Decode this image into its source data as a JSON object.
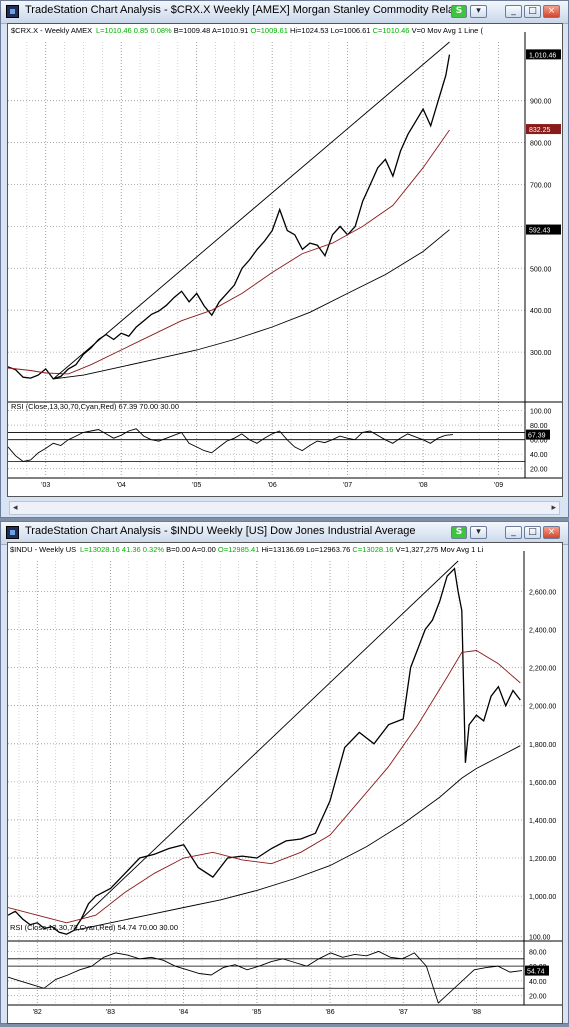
{
  "window1": {
    "title": "TradeStation Chart Analysis - $CRX.X  Weekly  [AMEX] Morgan Stanley Commodity Relat",
    "link_label": "S",
    "header_symbol": "$CRX.X - Weekly  AMEX",
    "quote_parts": [
      {
        "text": "L=1010.46",
        "color": "#00b000"
      },
      {
        "text": "0.85",
        "color": "#00b000"
      },
      {
        "text": "0.08%",
        "color": "#00b000"
      },
      {
        "text": "B=1009.48",
        "color": "#000000"
      },
      {
        "text": "A=1010.91",
        "color": "#000000"
      },
      {
        "text": "O=1009.61",
        "color": "#00b000"
      },
      {
        "text": "Hi=1024.53",
        "color": "#000000"
      },
      {
        "text": "Lo=1006.61",
        "color": "#000000"
      },
      {
        "text": "C=1010.46",
        "color": "#00b000"
      },
      {
        "text": "V=0",
        "color": "#000000"
      },
      {
        "text": "Mov Avg 1 Line (",
        "color": "#000000"
      }
    ],
    "rsi_label": "RSI (Close,13,30,70,Cyan,Red)    67.39   70.00   30.00",
    "price_markers": [
      {
        "label": "1,010.46",
        "bg": "#000000",
        "fg": "#ffffff"
      },
      {
        "label": "832.25",
        "bg": "#8b1a1a",
        "fg": "#ffffff"
      },
      {
        "label": "592.43",
        "bg": "#000000",
        "fg": "#ffffff"
      }
    ],
    "rsi_marker": "67.39",
    "scroll_left": "◂",
    "scroll_right": "▸"
  },
  "window2": {
    "title": "TradeStation Chart Analysis - $INDU  Weekly  [US] Dow Jones Industrial Average",
    "link_label": "S",
    "header_symbol": "$INDU - Weekly  US",
    "quote_parts": [
      {
        "text": "L=13028.16",
        "color": "#00b000"
      },
      {
        "text": "41.36",
        "color": "#00b000"
      },
      {
        "text": "0.32%",
        "color": "#00b000"
      },
      {
        "text": "B=0.00",
        "color": "#000000"
      },
      {
        "text": "A=0.00",
        "color": "#000000"
      },
      {
        "text": "O=12985.41",
        "color": "#00b000"
      },
      {
        "text": "Hi=13136.69",
        "color": "#000000"
      },
      {
        "text": "Lo=12963.76",
        "color": "#000000"
      },
      {
        "text": "C=13028.16",
        "color": "#00b000"
      },
      {
        "text": "V=1,327,275",
        "color": "#000000"
      },
      {
        "text": "Mov Avg 1 Li",
        "color": "#000000"
      }
    ],
    "rsi_label": "RSI (Close,13,30,70,Cyan,Red)    54.74   70.00   30.00",
    "rsi_marker": "54.74"
  },
  "chart_data": [
    {
      "type": "line",
      "x_tick_labels": [
        "'03",
        "'04",
        "'05",
        "'06",
        "'07",
        "'08",
        "'09"
      ],
      "x_start": 2002.5,
      "x_end": 2009.35,
      "y_tick_labels": [
        "300.00",
        "400.00",
        "500.00",
        "600.00",
        "700.00",
        "800.00",
        "900.00"
      ],
      "ylim": [
        200,
        1040
      ],
      "series": [
        {
          "color": "#000000",
          "x": [
            2002.5,
            2002.6,
            2002.7,
            2002.8,
            2002.9,
            2003.0,
            2003.1,
            2003.2,
            2003.3,
            2003.4,
            2003.5,
            2003.6,
            2003.7,
            2003.8,
            2003.9,
            2004.0,
            2004.1,
            2004.2,
            2004.3,
            2004.4,
            2004.5,
            2004.6,
            2004.7,
            2004.8,
            2004.9,
            2005.0,
            2005.1,
            2005.2,
            2005.3,
            2005.4,
            2005.5,
            2005.6,
            2005.7,
            2005.8,
            2005.9,
            2006.0,
            2006.1,
            2006.2,
            2006.3,
            2006.4,
            2006.5,
            2006.6,
            2006.7,
            2006.8,
            2006.9,
            2007.0,
            2007.1,
            2007.2,
            2007.3,
            2007.4,
            2007.5,
            2007.6,
            2007.7,
            2007.8,
            2007.9,
            2008.0,
            2008.1,
            2008.2,
            2008.3,
            2008.35
          ],
          "y": [
            265,
            258,
            240,
            238,
            245,
            260,
            236,
            242,
            260,
            270,
            295,
            310,
            330,
            342,
            330,
            345,
            338,
            360,
            375,
            390,
            398,
            412,
            430,
            445,
            420,
            440,
            410,
            388,
            420,
            440,
            460,
            500,
            520,
            545,
            565,
            590,
            640,
            590,
            580,
            545,
            560,
            555,
            530,
            580,
            600,
            580,
            600,
            660,
            700,
            740,
            760,
            720,
            780,
            820,
            850,
            880,
            840,
            900,
            960,
            1010
          ]
        },
        {
          "color": "#8b1a1a",
          "x": [
            2002.5,
            2002.8,
            2003.0,
            2003.3,
            2003.6,
            2004.0,
            2004.4,
            2004.8,
            2005.2,
            2005.6,
            2006.0,
            2006.4,
            2006.8,
            2007.2,
            2007.6,
            2008.0,
            2008.35
          ],
          "y": [
            262,
            256,
            250,
            248,
            270,
            305,
            340,
            375,
            400,
            440,
            490,
            535,
            560,
            600,
            650,
            740,
            830
          ]
        },
        {
          "color": "#000000",
          "x": [
            2003.1,
            2003.5,
            2004.0,
            2004.5,
            2005.0,
            2005.5,
            2006.0,
            2006.5,
            2007.0,
            2007.5,
            2008.0,
            2008.35
          ],
          "y": [
            236,
            245,
            265,
            285,
            305,
            330,
            360,
            395,
            440,
            485,
            540,
            592
          ]
        },
        {
          "color": "#000000",
          "x": [
            2003.1,
            2008.35
          ],
          "y": [
            236,
            1040
          ]
        }
      ],
      "rsi": {
        "ylim": [
          10,
          105
        ],
        "y_tick_labels": [
          "20.00",
          "40.00",
          "60.00",
          "80.00",
          "100.00"
        ],
        "levels": [
          70,
          30,
          60
        ],
        "values": [
          50,
          38,
          30,
          32,
          42,
          48,
          55,
          52,
          60,
          65,
          70,
          72,
          74,
          68,
          62,
          66,
          72,
          75,
          65,
          60,
          58,
          62,
          66,
          70,
          55,
          50,
          45,
          42,
          50,
          58,
          62,
          68,
          60,
          55,
          62,
          68,
          72,
          60,
          50,
          45,
          52,
          58,
          56,
          60,
          65,
          62,
          60,
          70,
          72,
          66,
          60,
          55,
          62,
          68,
          64,
          60,
          55,
          62,
          66,
          67
        ]
      }
    },
    {
      "type": "line",
      "x_tick_labels": [
        "'82",
        "'83",
        "'84",
        "'85",
        "'86",
        "'87",
        "'88"
      ],
      "x_start": 1981.6,
      "x_end": 1988.65,
      "y_tick_labels": [
        "1,000.00",
        "1,200.00",
        "1,400.00",
        "1,600.00",
        "1,800.00",
        "2,000.00",
        "2,200.00",
        "2,400.00",
        "2,600.00"
      ],
      "ylim": [
        780,
        2760
      ],
      "series": [
        {
          "color": "#000000",
          "x": [
            1981.6,
            1981.7,
            1981.8,
            1981.9,
            1982.0,
            1982.1,
            1982.2,
            1982.3,
            1982.4,
            1982.5,
            1982.6,
            1982.7,
            1982.8,
            1982.9,
            1983.0,
            1983.2,
            1983.4,
            1983.6,
            1983.8,
            1984.0,
            1984.2,
            1984.4,
            1984.6,
            1984.8,
            1985.0,
            1985.2,
            1985.4,
            1985.6,
            1985.8,
            1986.0,
            1986.2,
            1986.4,
            1986.6,
            1986.8,
            1987.0,
            1987.1,
            1987.2,
            1987.3,
            1987.4,
            1987.5,
            1987.6,
            1987.7,
            1987.75,
            1987.8,
            1987.85,
            1987.9,
            1988.0,
            1988.1,
            1988.2,
            1988.3,
            1988.4,
            1988.5,
            1988.6
          ],
          "y": [
            900,
            920,
            880,
            850,
            860,
            830,
            840,
            810,
            800,
            820,
            880,
            960,
            1000,
            1020,
            1040,
            1120,
            1200,
            1220,
            1250,
            1270,
            1150,
            1100,
            1200,
            1210,
            1200,
            1250,
            1290,
            1300,
            1330,
            1500,
            1780,
            1860,
            1800,
            1900,
            1930,
            2200,
            2300,
            2400,
            2450,
            2550,
            2680,
            2720,
            2600,
            2500,
            1700,
            1900,
            1950,
            1920,
            2050,
            2100,
            2000,
            2080,
            2030
          ]
        },
        {
          "color": "#8b1a1a",
          "x": [
            1981.6,
            1982.0,
            1982.4,
            1982.8,
            1983.2,
            1983.6,
            1984.0,
            1984.4,
            1984.8,
            1985.2,
            1985.6,
            1986.0,
            1986.4,
            1986.8,
            1987.2,
            1987.6,
            1987.8,
            1988.0,
            1988.3,
            1988.6
          ],
          "y": [
            940,
            900,
            860,
            900,
            1020,
            1120,
            1200,
            1230,
            1190,
            1170,
            1230,
            1320,
            1500,
            1680,
            1900,
            2150,
            2280,
            2290,
            2220,
            2120
          ]
        },
        {
          "color": "#000000",
          "x": [
            1982.5,
            1983.0,
            1983.5,
            1984.0,
            1984.5,
            1985.0,
            1985.5,
            1986.0,
            1986.5,
            1987.0,
            1987.5,
            1987.8,
            1988.0,
            1988.3,
            1988.6
          ],
          "y": [
            820,
            860,
            900,
            940,
            980,
            1030,
            1090,
            1160,
            1260,
            1380,
            1520,
            1620,
            1670,
            1730,
            1790
          ]
        },
        {
          "color": "#000000",
          "x": [
            1982.6,
            1987.75
          ],
          "y": [
            880,
            2760
          ]
        }
      ],
      "rsi": {
        "ylim": [
          10,
          105
        ],
        "y_tick_labels": [
          "20.00",
          "40.00",
          "60.00",
          "80.00",
          "100.00"
        ],
        "levels": [
          70,
          30,
          60
        ],
        "values": [
          45,
          40,
          35,
          30,
          42,
          48,
          55,
          60,
          72,
          78,
          75,
          70,
          72,
          68,
          60,
          55,
          50,
          48,
          58,
          62,
          55,
          60,
          66,
          70,
          65,
          60,
          70,
          78,
          72,
          76,
          74,
          80,
          72,
          70,
          78,
          60,
          10,
          25,
          40,
          55,
          58,
          60,
          52,
          54
        ]
      }
    }
  ]
}
